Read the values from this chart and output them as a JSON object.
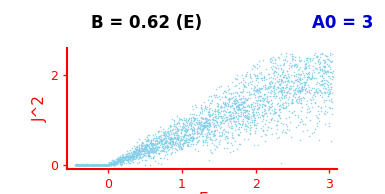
{
  "title": "B = 0.62 (E)",
  "title_color": "black",
  "title_fontsize": 12,
  "label_A0": "A0 = 3",
  "label_A0_color": "#0000CC",
  "label_A0_fontsize": 12,
  "ylabel": "J^2",
  "xlabel": "E",
  "axis_label_color": "red",
  "axis_label_fontsize": 11,
  "xlim": [
    -0.55,
    3.1
  ],
  "ylim": [
    -0.08,
    2.6
  ],
  "xtick_vals": [
    0,
    1,
    2,
    3
  ],
  "ytick_vals": [
    0,
    2
  ],
  "dot_color": "#82CFEA",
  "dot_size": 1.2,
  "spine_color": "red",
  "tick_color": "red",
  "tick_label_fontsize": 9,
  "background_color": "white",
  "seed": 42,
  "n_points": 3000
}
